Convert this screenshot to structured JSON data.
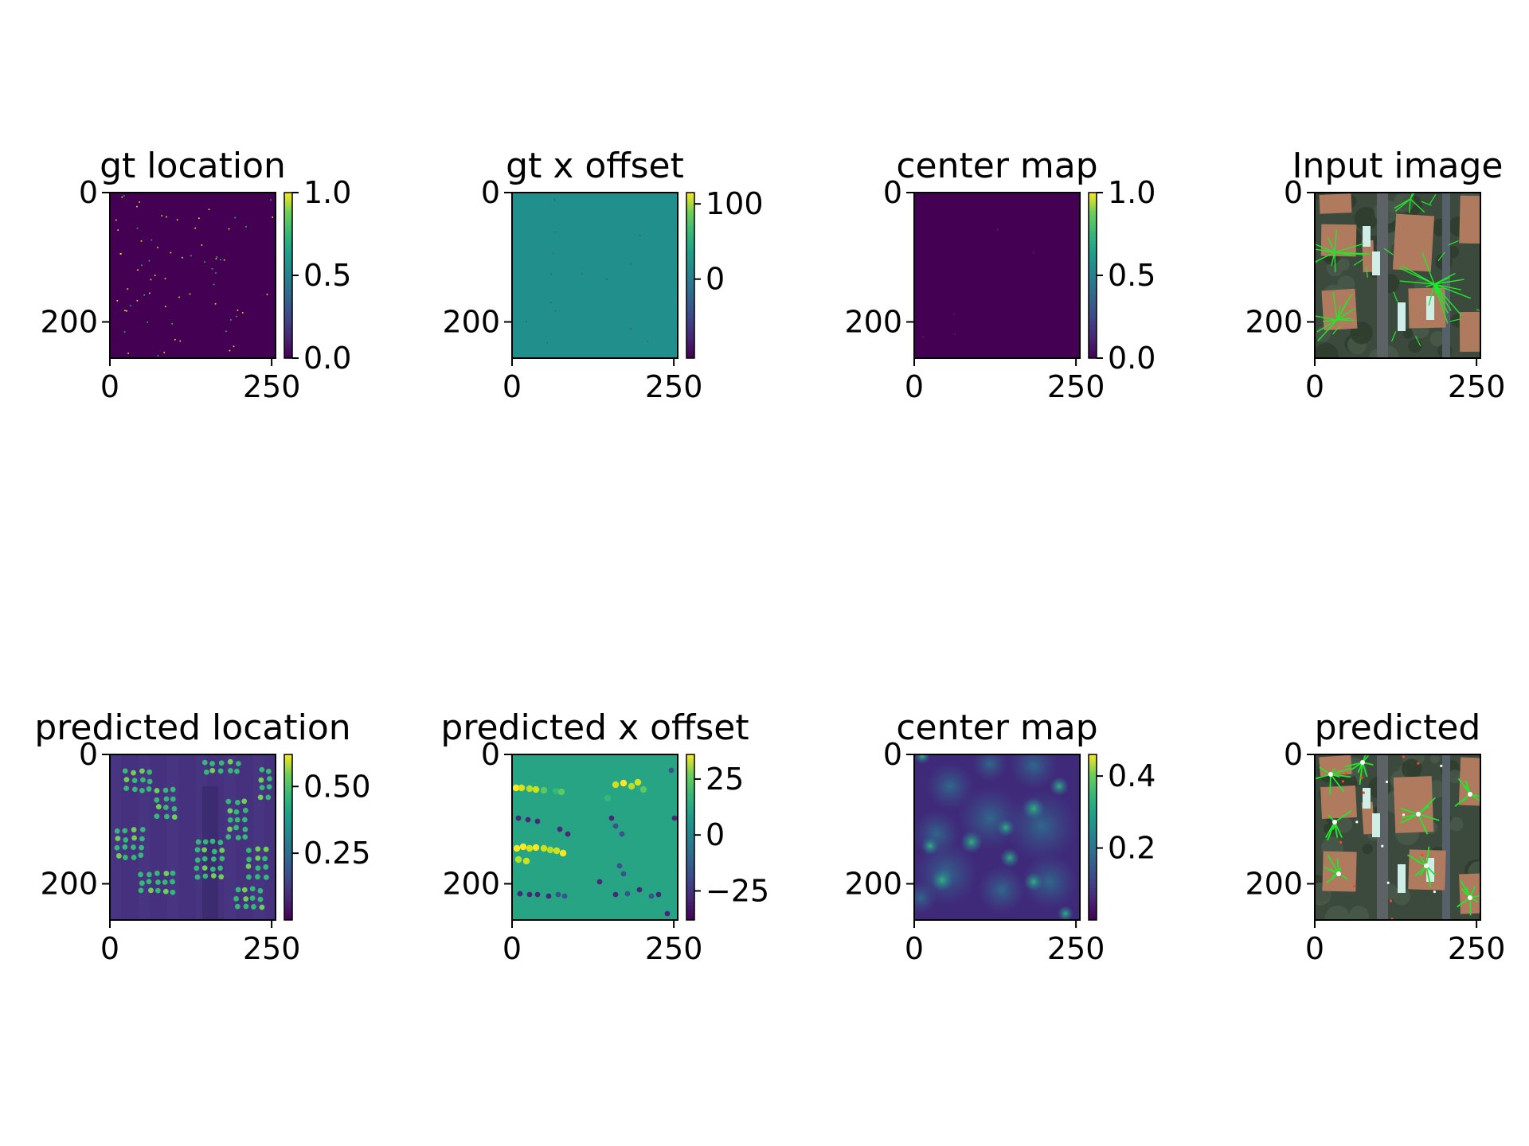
{
  "chart_data": [
    {
      "type": "heatmap",
      "title": "gt location",
      "xticks": [
        0,
        250
      ],
      "yticks": [
        0,
        200
      ],
      "xlim": [
        0,
        256
      ],
      "ylim": [
        256,
        0
      ],
      "colorbar": {
        "ticks": [
          "0.0",
          "0.5",
          "1.0"
        ],
        "range": [
          0.0,
          1.0
        ]
      },
      "content": "sparse",
      "seed": 11,
      "colors": {
        "background": "#440154",
        "marks": "#fde725"
      }
    },
    {
      "type": "heatmap",
      "title": "gt x offset",
      "xticks": [
        0,
        250
      ],
      "yticks": [
        0,
        200
      ],
      "xlim": [
        0,
        256
      ],
      "ylim": [
        256,
        0
      ],
      "colorbar": {
        "ticks": [
          "0",
          "100"
        ],
        "range": [
          -105,
          115
        ]
      },
      "content": "flat",
      "seed": 23,
      "colors": {
        "background": "#21908d",
        "marks": "#3b528b"
      }
    },
    {
      "type": "heatmap",
      "title": "center map",
      "xticks": [
        0,
        250
      ],
      "yticks": [
        0,
        200
      ],
      "xlim": [
        0,
        256
      ],
      "ylim": [
        256,
        0
      ],
      "colorbar": {
        "ticks": [
          "0.0",
          "0.5",
          "1.0"
        ],
        "range": [
          0.0,
          1.0
        ]
      },
      "content": "blank",
      "seed": 5,
      "colors": {
        "background": "#440154",
        "marks": "#fde725"
      }
    },
    {
      "type": "image",
      "title": "Input image",
      "xticks": [
        0,
        250
      ],
      "yticks": [
        0,
        200
      ],
      "xlim": [
        0,
        256
      ],
      "ylim": [
        256,
        0
      ],
      "content": "aerial",
      "seed": 7,
      "colors": {
        "background": "#3b4a3c",
        "roof": "#b07a5e",
        "rays": "#22e62c"
      }
    },
    {
      "type": "heatmap",
      "title": "predicted location",
      "xticks": [
        0,
        250
      ],
      "yticks": [
        0,
        200
      ],
      "xlim": [
        0,
        256
      ],
      "ylim": [
        256,
        0
      ],
      "colorbar": {
        "ticks": [
          "0.25",
          "0.50"
        ],
        "range": [
          0.0,
          0.62
        ]
      },
      "content": "dots",
      "seed": 31,
      "colors": {
        "background": "#46317e",
        "marks": "#35b779"
      }
    },
    {
      "type": "heatmap",
      "title": "predicted x offset",
      "xticks": [
        0,
        250
      ],
      "yticks": [
        0,
        200
      ],
      "xlim": [
        0,
        256
      ],
      "ylim": [
        256,
        0
      ],
      "colorbar": {
        "ticks": [
          "−25",
          "0",
          "25"
        ],
        "range": [
          -38,
          36
        ]
      },
      "content": "offset",
      "seed": 43,
      "colors": {
        "background": "#26a484",
        "marks": "#d0e11c"
      }
    },
    {
      "type": "heatmap",
      "title": "center map",
      "xticks": [
        0,
        250
      ],
      "yticks": [
        0,
        200
      ],
      "xlim": [
        0,
        256
      ],
      "ylim": [
        256,
        0
      ],
      "colorbar": {
        "ticks": [
          "0.2",
          "0.4"
        ],
        "range": [
          0.0,
          0.46
        ]
      },
      "content": "blobs",
      "seed": 53,
      "colors": {
        "background": "#3f2a7a",
        "marks": "#2fb47c"
      }
    },
    {
      "type": "image",
      "title": "predicted",
      "xticks": [
        0,
        250
      ],
      "yticks": [
        0,
        200
      ],
      "xlim": [
        0,
        256
      ],
      "ylim": [
        256,
        0
      ],
      "content": "aerial-pred",
      "seed": 9,
      "colors": {
        "background": "#3b4a3c",
        "roof": "#b07a5e",
        "rays": "#22e62c"
      }
    }
  ]
}
